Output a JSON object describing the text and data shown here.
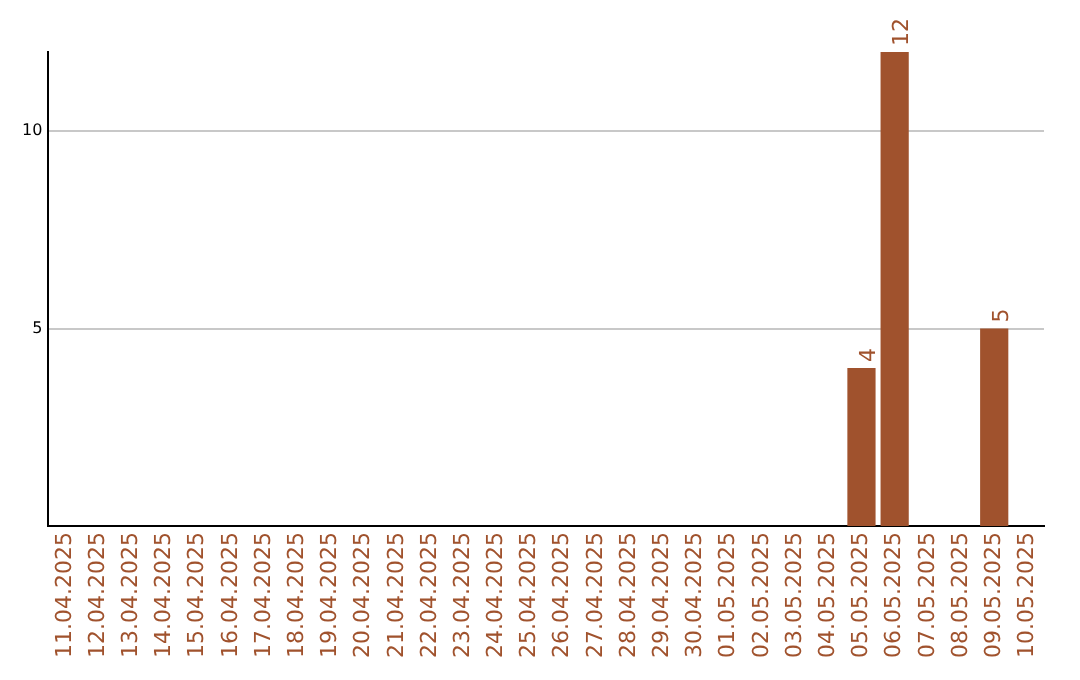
{
  "chart_data": {
    "type": "bar",
    "categories": [
      "11.04.2025",
      "12.04.2025",
      "13.04.2025",
      "14.04.2025",
      "15.04.2025",
      "16.04.2025",
      "17.04.2025",
      "18.04.2025",
      "19.04.2025",
      "20.04.2025",
      "21.04.2025",
      "22.04.2025",
      "23.04.2025",
      "24.04.2025",
      "25.04.2025",
      "26.04.2025",
      "27.04.2025",
      "28.04.2025",
      "29.04.2025",
      "30.04.2025",
      "01.05.2025",
      "02.05.2025",
      "03.05.2025",
      "04.05.2025",
      "05.05.2025",
      "06.05.2025",
      "07.05.2025",
      "08.05.2025",
      "09.05.2025",
      "10.05.2025"
    ],
    "values": [
      0,
      0,
      0,
      0,
      0,
      0,
      0,
      0,
      0,
      0,
      0,
      0,
      0,
      0,
      0,
      0,
      0,
      0,
      0,
      0,
      0,
      0,
      0,
      0,
      4,
      12,
      0,
      0,
      5,
      0
    ],
    "value_labels": [
      null,
      null,
      null,
      null,
      null,
      null,
      null,
      null,
      null,
      null,
      null,
      null,
      null,
      null,
      null,
      null,
      null,
      null,
      null,
      null,
      null,
      null,
      null,
      null,
      "4",
      "12",
      null,
      null,
      "5",
      null
    ],
    "color": "#a0522d",
    "ylim": [
      0,
      12
    ],
    "yticks": [
      5,
      10
    ],
    "grid": "y",
    "legend": false
  }
}
